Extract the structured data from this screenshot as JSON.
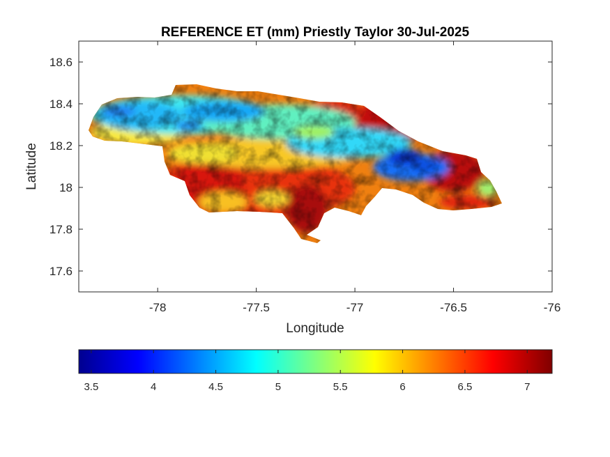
{
  "title": "REFERENCE ET (mm) Priestly Taylor 30-Jul-2025",
  "x_axis": {
    "label": "Longitude",
    "range": [
      -78.4,
      -76.0
    ],
    "ticks": [
      -78,
      -77.5,
      -77,
      -76.5,
      -76
    ],
    "tick_labels": [
      "-78",
      "-77.5",
      "-77",
      "-76.5",
      "-76"
    ]
  },
  "y_axis": {
    "label": "Latitude",
    "range": [
      17.5,
      18.7
    ],
    "ticks": [
      17.6,
      17.8,
      18.0,
      18.2,
      18.4,
      18.6
    ],
    "tick_labels": [
      "17.6",
      "17.8",
      "18",
      "18.2",
      "18.4",
      "18.6"
    ]
  },
  "colorbar": {
    "colormap": "jet",
    "range": [
      3.4,
      7.2
    ],
    "ticks": [
      3.5,
      4,
      4.5,
      5,
      5.5,
      6,
      6.5,
      7
    ],
    "tick_labels": [
      "3.5",
      "4",
      "4.5",
      "5",
      "5.5",
      "6",
      "6.5",
      "7"
    ],
    "orientation": "horizontal",
    "placement": "below"
  },
  "chart_data": {
    "type": "heatmap",
    "title": "REFERENCE ET (mm) Priestly Taylor 30-Jul-2025",
    "xlabel": "Longitude",
    "ylabel": "Latitude",
    "xlim": [
      -78.4,
      -76.0
    ],
    "ylim": [
      17.5,
      18.7
    ],
    "value_range": [
      3.4,
      7.2
    ],
    "grid": false,
    "description_points": [
      {
        "lon": -78.2,
        "lat": 18.35,
        "value": 4.2
      },
      {
        "lon": -77.9,
        "lat": 18.3,
        "value": 4.4
      },
      {
        "lon": -77.6,
        "lat": 18.3,
        "value": 4.8
      },
      {
        "lon": -77.3,
        "lat": 18.25,
        "value": 5.0
      },
      {
        "lon": -77.0,
        "lat": 18.2,
        "value": 4.7
      },
      {
        "lon": -76.75,
        "lat": 18.12,
        "value": 3.7
      },
      {
        "lon": -76.65,
        "lat": 18.08,
        "value": 3.9
      },
      {
        "lon": -76.5,
        "lat": 18.2,
        "value": 6.9
      },
      {
        "lon": -76.4,
        "lat": 18.05,
        "value": 7.0
      },
      {
        "lon": -76.85,
        "lat": 18.35,
        "value": 6.9
      },
      {
        "lon": -77.75,
        "lat": 17.95,
        "value": 6.6
      },
      {
        "lon": -77.45,
        "lat": 18.0,
        "value": 6.7
      },
      {
        "lon": -77.25,
        "lat": 17.85,
        "value": 6.8
      },
      {
        "lon": -77.1,
        "lat": 17.98,
        "value": 6.6
      },
      {
        "lon": -78.1,
        "lat": 18.25,
        "value": 5.8
      },
      {
        "lon": -77.5,
        "lat": 18.15,
        "value": 5.9
      },
      {
        "lon": -76.45,
        "lat": 17.95,
        "value": 5.6
      }
    ]
  }
}
